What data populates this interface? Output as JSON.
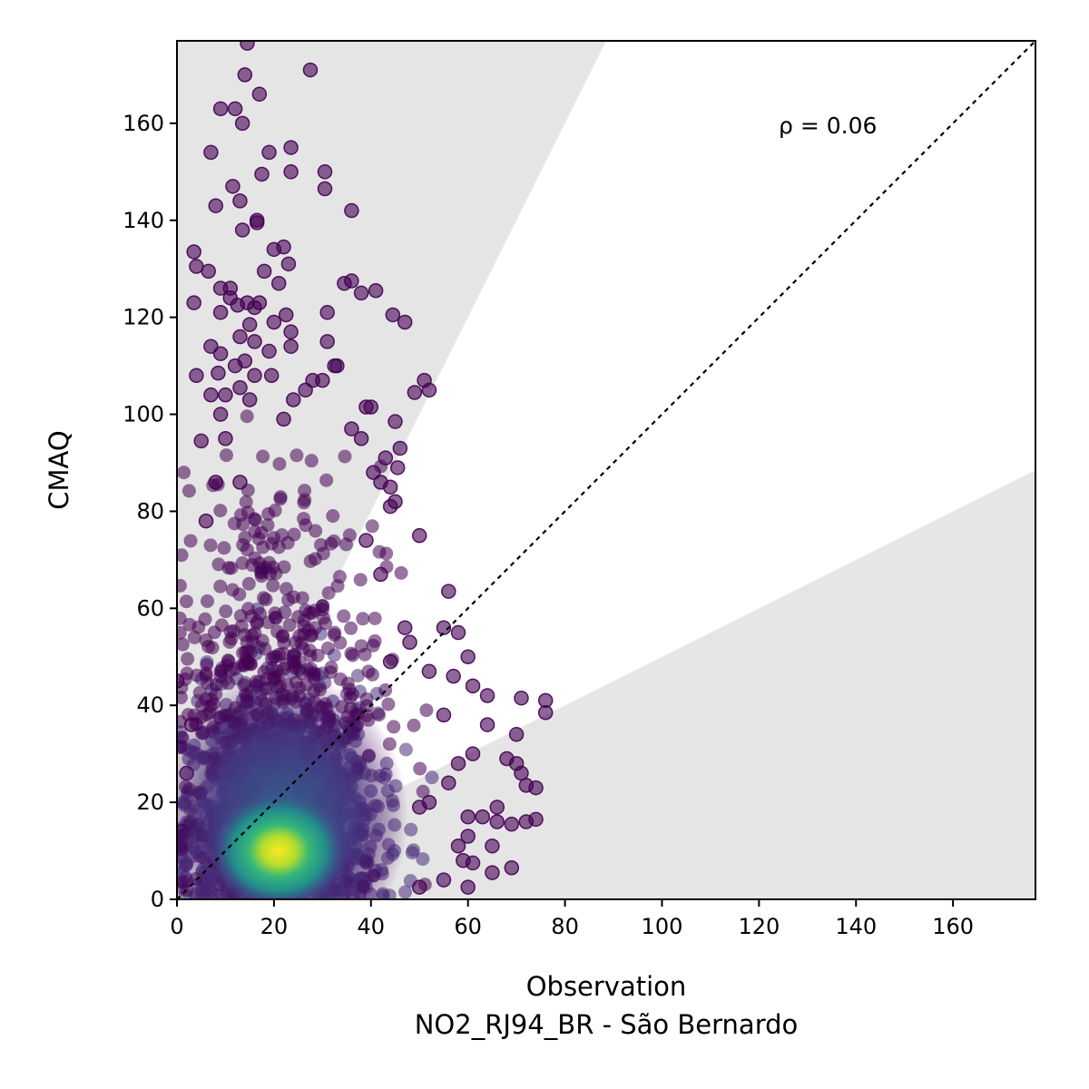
{
  "chart_data": {
    "type": "scatter",
    "xlabel": "Observation",
    "xlabel_sub": "NO2_RJ94_BR - São Bernardo",
    "ylabel": "CMAQ",
    "annotation": "ρ = 0.06",
    "xlim": [
      0,
      177
    ],
    "ylim": [
      0,
      177
    ],
    "xticks": [
      0,
      20,
      40,
      60,
      80,
      100,
      120,
      140,
      160
    ],
    "yticks": [
      0,
      20,
      40,
      60,
      80,
      100,
      120,
      140,
      160
    ],
    "one_to_one_line": true,
    "shaded_band_factor": 2,
    "colormap": "viridis (point density)",
    "colors": {
      "band": "#e5e5e5",
      "low_density": "#440154",
      "mid_density": "#21918c",
      "high_density": "#fde725",
      "reference_line": "#000000"
    },
    "outlier_points": [
      [
        14.5,
        176.5
      ],
      [
        27.5,
        171
      ],
      [
        14,
        170
      ],
      [
        17,
        166
      ],
      [
        9,
        163
      ],
      [
        12,
        163
      ],
      [
        13.5,
        160
      ],
      [
        23.5,
        155
      ],
      [
        7,
        154
      ],
      [
        19,
        154
      ],
      [
        30.5,
        150
      ],
      [
        23.5,
        150
      ],
      [
        17.5,
        149.5
      ],
      [
        30.5,
        146.5
      ],
      [
        11.5,
        147
      ],
      [
        13,
        144
      ],
      [
        8,
        143
      ],
      [
        36,
        142
      ],
      [
        16.5,
        140
      ],
      [
        16.5,
        139.5
      ],
      [
        13.5,
        138
      ],
      [
        3.5,
        133.5
      ],
      [
        20,
        134
      ],
      [
        22,
        134.5
      ],
      [
        4,
        130.5
      ],
      [
        23,
        131
      ],
      [
        6.5,
        129.5
      ],
      [
        18,
        129.5
      ],
      [
        34.5,
        127
      ],
      [
        36,
        127.5
      ],
      [
        21,
        127
      ],
      [
        9,
        126
      ],
      [
        11,
        126
      ],
      [
        41,
        125.5
      ],
      [
        38,
        125
      ],
      [
        11,
        124
      ],
      [
        12.5,
        122.5
      ],
      [
        14.5,
        123
      ],
      [
        17,
        123
      ],
      [
        3.5,
        123
      ],
      [
        16,
        122
      ],
      [
        9,
        121
      ],
      [
        22.5,
        120.5
      ],
      [
        31,
        121
      ],
      [
        44.5,
        120.5
      ],
      [
        47,
        119
      ],
      [
        15,
        118.5
      ],
      [
        20,
        119
      ],
      [
        13,
        116
      ],
      [
        23.5,
        117
      ],
      [
        16,
        115
      ],
      [
        31,
        115
      ],
      [
        23.5,
        114
      ],
      [
        7,
        114
      ],
      [
        9,
        112.5
      ],
      [
        19,
        113
      ],
      [
        14,
        111
      ],
      [
        12,
        110
      ],
      [
        32.5,
        110
      ],
      [
        33,
        110
      ],
      [
        4,
        108
      ],
      [
        8.5,
        108.5
      ],
      [
        16,
        108
      ],
      [
        19.5,
        108
      ],
      [
        28,
        107
      ],
      [
        30,
        107
      ],
      [
        51,
        107
      ],
      [
        13,
        105.5
      ],
      [
        26.5,
        105
      ],
      [
        52,
        105
      ],
      [
        7,
        104
      ],
      [
        10,
        104
      ],
      [
        15,
        103
      ],
      [
        24,
        103
      ],
      [
        49,
        104.5
      ],
      [
        40,
        101.5
      ],
      [
        39,
        101.5
      ],
      [
        9,
        100
      ],
      [
        22,
        99
      ],
      [
        45,
        98.5
      ],
      [
        36,
        97
      ],
      [
        10,
        95
      ],
      [
        5,
        94.5
      ],
      [
        38,
        95
      ],
      [
        46,
        93
      ],
      [
        43,
        91
      ],
      [
        45.5,
        89
      ],
      [
        40.5,
        88
      ],
      [
        8,
        86
      ],
      [
        13,
        86
      ],
      [
        42,
        86
      ],
      [
        44,
        85
      ],
      [
        45,
        82
      ],
      [
        6,
        78
      ],
      [
        44,
        81
      ],
      [
        50,
        75
      ],
      [
        39,
        74
      ],
      [
        42,
        67
      ],
      [
        56,
        63.5
      ],
      [
        47,
        56
      ],
      [
        55,
        56
      ],
      [
        48,
        53
      ],
      [
        58,
        55
      ],
      [
        44,
        49
      ],
      [
        60,
        50
      ],
      [
        52,
        47
      ],
      [
        57,
        46
      ],
      [
        61,
        44
      ],
      [
        64,
        42
      ],
      [
        71,
        41.5
      ],
      [
        76,
        41
      ],
      [
        76,
        38.5
      ],
      [
        55,
        38
      ],
      [
        64,
        36
      ],
      [
        70,
        34
      ],
      [
        61,
        30
      ],
      [
        58,
        28
      ],
      [
        56,
        24
      ],
      [
        68,
        29
      ],
      [
        70,
        28
      ],
      [
        71,
        26
      ],
      [
        72,
        23.5
      ],
      [
        74,
        23
      ],
      [
        66,
        19
      ],
      [
        52,
        20
      ],
      [
        50,
        19
      ],
      [
        60,
        17
      ],
      [
        63,
        17
      ],
      [
        66,
        16
      ],
      [
        69,
        15.5
      ],
      [
        72,
        16
      ],
      [
        74,
        16.5
      ],
      [
        60,
        13
      ],
      [
        58,
        11
      ],
      [
        65,
        11
      ],
      [
        59,
        8
      ],
      [
        61,
        7.5
      ],
      [
        69,
        6.5
      ],
      [
        65,
        5.5
      ],
      [
        55,
        4
      ],
      [
        50,
        2.5
      ],
      [
        60,
        2.5
      ],
      [
        0,
        45
      ],
      [
        3,
        36
      ],
      [
        2,
        26
      ],
      [
        1,
        14
      ]
    ]
  }
}
